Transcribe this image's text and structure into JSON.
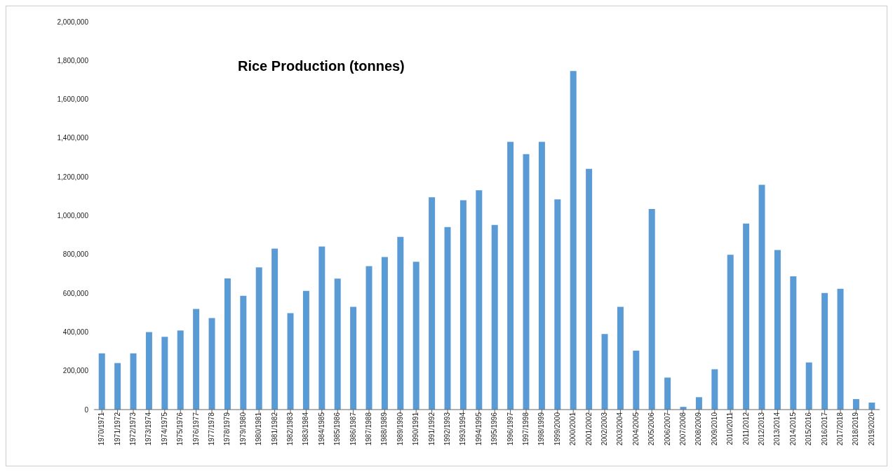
{
  "chart_data": {
    "type": "bar",
    "title": "Rice Production (tonnes)",
    "categories": [
      "1970/1971",
      "1971/1972",
      "1972/1973",
      "1973/1974",
      "1974/1975",
      "1975/1976",
      "1976/1977",
      "1977/1978",
      "1978/1979",
      "1979/1980",
      "1980/1981",
      "1981/1982",
      "1982/1983",
      "1983/1984",
      "1984/1985",
      "1985/1986",
      "1986/1987",
      "1987/1988",
      "1988/1989",
      "1989/1990",
      "1990/1991",
      "1991/1992",
      "1992/1993",
      "1993/1994",
      "1994/1995",
      "1995/1996",
      "1996/1997",
      "1997/1998",
      "1998/1999",
      "1999/2000",
      "2000/2001",
      "2001/2002",
      "2002/2003",
      "2003/2004",
      "2004/2005",
      "2005/2006",
      "2006/2007",
      "2007/2008",
      "2008/2009",
      "2009/2010",
      "2010/2011",
      "2011/2012",
      "2012/2013",
      "2013/2014",
      "2014/2015",
      "2015/2016",
      "2016/2017",
      "2017/2018",
      "2018/2019",
      "2019/2020"
    ],
    "values": [
      290000,
      240000,
      290000,
      400000,
      375000,
      408000,
      519000,
      472000,
      676000,
      587000,
      733000,
      830000,
      497000,
      612000,
      841000,
      675000,
      530000,
      740000,
      787000,
      891000,
      762000,
      1095000,
      941000,
      1080000,
      1131000,
      952000,
      1381000,
      1317000,
      1381000,
      1084000,
      1746000,
      1241000,
      390000,
      530000,
      304000,
      1034000,
      165000,
      14000,
      64000,
      208000,
      798000,
      959000,
      1159000,
      823000,
      687000,
      243000,
      601000,
      623000,
      54000,
      36000
    ],
    "color": "#5b9bd5",
    "ylim": [
      0,
      2000000
    ],
    "yticks": [
      0,
      {
        "value": 200000,
        "label": "200,000"
      },
      {
        "value": 400000,
        "label": "400,000"
      },
      {
        "value": 600000,
        "label": "600,000"
      },
      {
        "value": 800000,
        "label": "800,000"
      },
      {
        "value": 1000000,
        "label": "1,000,000"
      },
      {
        "value": 1200000,
        "label": "1,200,000"
      },
      {
        "value": 1400000,
        "label": "1,400,000"
      },
      {
        "value": 1600000,
        "label": "1,600,000"
      },
      {
        "value": 1800000,
        "label": "1,800,000"
      },
      {
        "value": 2000000,
        "label": "2,000,000"
      }
    ],
    "grid": false
  }
}
